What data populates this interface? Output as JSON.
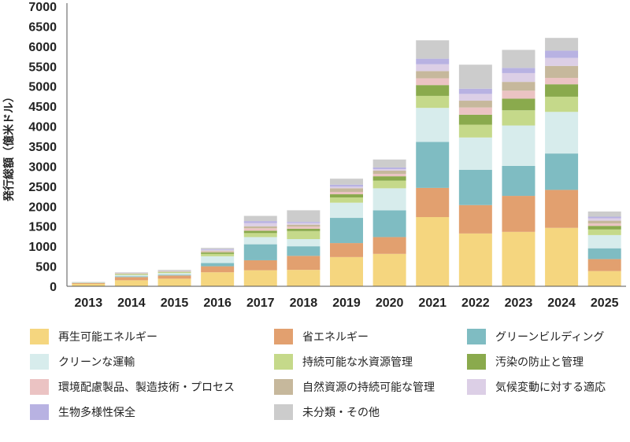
{
  "chart_data": {
    "type": "bar",
    "stacked": true,
    "ylabel": "発行総額（億米ドル）",
    "ylim": [
      0,
      7000
    ],
    "yticks": [
      0,
      500,
      1000,
      1500,
      2000,
      2500,
      3000,
      3500,
      4000,
      4500,
      5000,
      5500,
      6000,
      6500,
      7000
    ],
    "grid": false,
    "legend_position": "bottom",
    "categories": [
      "2013",
      "2014",
      "2015",
      "2016",
      "2017",
      "2018",
      "2019",
      "2020",
      "2021",
      "2022",
      "2023",
      "2024",
      "2025"
    ],
    "series": [
      {
        "name": "再生可能エネルギー",
        "color": "#F5D67F",
        "values": [
          60,
          150,
          190,
          350,
          400,
          410,
          730,
          810,
          1730,
          1320,
          1360,
          1460,
          380
        ]
      },
      {
        "name": "省エネルギー",
        "color": "#E2A06F",
        "values": [
          20,
          80,
          80,
          150,
          250,
          350,
          350,
          420,
          730,
          710,
          900,
          950,
          300
        ]
      },
      {
        "name": "グリーンビルディング",
        "color": "#7FBCC2",
        "values": [
          5,
          20,
          20,
          80,
          400,
          240,
          630,
          670,
          1150,
          880,
          750,
          910,
          270
        ]
      },
      {
        "name": "クリーンな運輸",
        "color": "#D7ECEC",
        "values": [
          5,
          30,
          40,
          170,
          180,
          180,
          380,
          550,
          850,
          810,
          1010,
          1040,
          330
        ]
      },
      {
        "name": "持続可能な水資源管理",
        "color": "#C5D98A",
        "values": [
          5,
          20,
          20,
          60,
          100,
          200,
          130,
          190,
          300,
          320,
          380,
          380,
          140
        ]
      },
      {
        "name": "汚染の防止と管理",
        "color": "#8AAA4D",
        "values": [
          2,
          10,
          10,
          40,
          60,
          60,
          80,
          110,
          270,
          250,
          290,
          310,
          90
        ]
      },
      {
        "name": "環境配慮製品、製造技術・プロセス",
        "color": "#EBC3C3",
        "values": [
          2,
          10,
          10,
          20,
          60,
          50,
          60,
          60,
          170,
          180,
          200,
          160,
          60
        ]
      },
      {
        "name": "自然資源の持続可能な管理",
        "color": "#C6B89C",
        "values": [
          3,
          10,
          10,
          20,
          50,
          50,
          90,
          80,
          180,
          170,
          220,
          300,
          70
        ]
      },
      {
        "name": "気候変動に対する適応",
        "color": "#DCCFE6",
        "values": [
          2,
          5,
          5,
          20,
          80,
          40,
          40,
          40,
          170,
          170,
          220,
          200,
          60
        ]
      },
      {
        "name": "生物多様性保全",
        "color": "#B8B2E2",
        "values": [
          1,
          5,
          5,
          20,
          50,
          30,
          50,
          40,
          140,
          130,
          130,
          180,
          40
        ]
      },
      {
        "name": "未分類・その他",
        "color": "#CCCCCC",
        "values": [
          5,
          10,
          20,
          30,
          130,
          290,
          150,
          200,
          460,
          600,
          450,
          320,
          130
        ]
      }
    ]
  }
}
